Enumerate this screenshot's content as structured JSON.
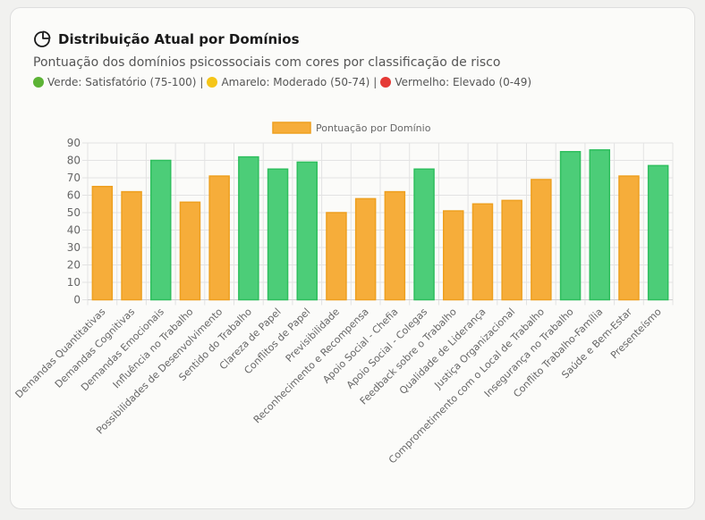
{
  "header": {
    "title": "Distribuição Atual por Domínios",
    "title_icon": "pie-chart-icon",
    "subtitle": "Pontuação dos domínios psicossociais com cores por classificação de risco",
    "legend": [
      {
        "label": "Verde: Satisfatório (75-100)",
        "color": "#5cb335"
      },
      {
        "label": "Amarelo: Moderado (50-74)",
        "color": "#f5c518"
      },
      {
        "label": "Vermelho: Elevado (0-49)",
        "color": "#e53935"
      }
    ],
    "separator": "|"
  },
  "chart_data": {
    "type": "bar",
    "title": "",
    "xlabel": "",
    "ylabel": "",
    "ylim": [
      0,
      90
    ],
    "yticks": [
      0,
      10,
      20,
      30,
      40,
      50,
      60,
      70,
      80,
      90
    ],
    "grid": true,
    "legend_position": "top",
    "colors": {
      "green": "#4ccd78",
      "orange": "#f6ad3a",
      "red": "#e53935"
    },
    "categories": [
      "Demandas Quantitativas",
      "Demandas Cognitivas",
      "Demandas Emocionais",
      "Influência no Trabalho",
      "Possibilidades de Desenvolvimento",
      "Sentido do Trabalho",
      "Clareza de Papel",
      "Conflitos de Papel",
      "Previsibilidade",
      "Reconhecimento e Recompensa",
      "Apoio Social - Chefia",
      "Apoio Social - Colegas",
      "Feedback sobre o Trabalho",
      "Qualidade de Liderança",
      "Justiça Organizacional",
      "Comprometimento com o Local de Trabalho",
      "Insegurança no Trabalho",
      "Conflito Trabalho-Família",
      "Saúde e Bem-Estar",
      "Presenteísmo"
    ],
    "series": [
      {
        "name": "Pontuação por Domínio",
        "values": [
          65,
          62,
          80,
          56,
          71,
          82,
          75,
          79,
          50,
          58,
          62,
          75,
          51,
          55,
          57,
          69,
          85,
          86,
          71,
          77
        ]
      }
    ]
  }
}
